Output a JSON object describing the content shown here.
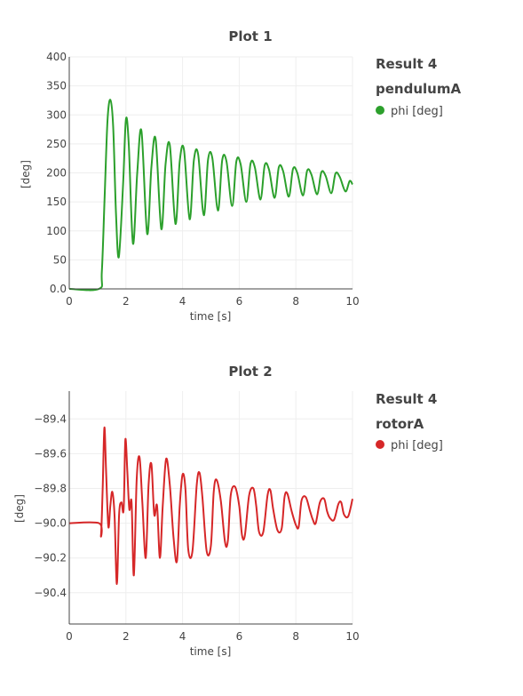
{
  "chart_data": [
    {
      "type": "line",
      "title": "Plot 1",
      "xlabel": "time [s]",
      "ylabel": "[deg]",
      "xlim": [
        0,
        10
      ],
      "ylim": [
        0,
        400
      ],
      "xticks": [
        0,
        2,
        4,
        6,
        8,
        10
      ],
      "xtick_labels": [
        "0",
        "2",
        "4",
        "6",
        "8",
        "10"
      ],
      "yticks": [
        0,
        50,
        100,
        150,
        200,
        250,
        300,
        350,
        400
      ],
      "ytick_labels": [
        "0.0",
        "50",
        "100",
        "150",
        "200",
        "250",
        "300",
        "350",
        "400"
      ],
      "grid": true,
      "legend_position": "right",
      "legend": {
        "group": "Result 4",
        "subgroup": "pendulumA",
        "entry": "phi [deg]"
      },
      "series": [
        {
          "name": "phi [deg]",
          "color": "#2ca02c",
          "x": [
            0,
            1.05,
            1.15,
            1.25,
            1.35,
            1.45,
            1.55,
            1.65,
            1.75,
            1.9,
            2.0,
            2.1,
            2.25,
            2.4,
            2.55,
            2.75,
            2.9,
            3.05,
            3.25,
            3.4,
            3.55,
            3.75,
            3.9,
            4.05,
            4.25,
            4.4,
            4.55,
            4.75,
            4.9,
            5.05,
            5.25,
            5.4,
            5.55,
            5.75,
            5.9,
            6.05,
            6.25,
            6.4,
            6.55,
            6.75,
            6.9,
            7.05,
            7.25,
            7.4,
            7.55,
            7.75,
            7.9,
            8.05,
            8.25,
            8.4,
            8.55,
            8.75,
            8.9,
            9.05,
            9.25,
            9.4,
            9.55,
            9.75,
            9.9,
            10.0
          ],
          "values": [
            0,
            0,
            30,
            160,
            290,
            326,
            280,
            130,
            55,
            180,
            292,
            250,
            78,
            200,
            272,
            95,
            210,
            258,
            103,
            215,
            248,
            112,
            220,
            240,
            120,
            222,
            232,
            127,
            223,
            226,
            135,
            222,
            220,
            143,
            220,
            215,
            150,
            216,
            210,
            154,
            213,
            206,
            157,
            210,
            203,
            159,
            207,
            200,
            161,
            204,
            197,
            163,
            201,
            195,
            165,
            199,
            193,
            168,
            186,
            180
          ]
        }
      ]
    },
    {
      "type": "line",
      "title": "Plot 2",
      "xlabel": "time [s]",
      "ylabel": "[deg]",
      "xlim": [
        0,
        10
      ],
      "ylim": [
        -90.58,
        -89.24
      ],
      "xticks": [
        0,
        2,
        4,
        6,
        8,
        10
      ],
      "xtick_labels": [
        "0",
        "2",
        "4",
        "6",
        "8",
        "10"
      ],
      "yticks": [
        -89.4,
        -89.6,
        -89.8,
        -90.0,
        -90.2,
        -90.4
      ],
      "ytick_labels": [
        "−89.4",
        "−89.6",
        "−89.8",
        "−90.0",
        "−90.2",
        "−90.4"
      ],
      "grid": true,
      "legend_position": "right",
      "legend": {
        "group": "Result 4",
        "subgroup": "rotorA",
        "entry": "phi [deg]"
      },
      "series": [
        {
          "name": "phi [deg]",
          "color": "#d62728",
          "x": [
            0,
            1.05,
            1.12,
            1.18,
            1.24,
            1.3,
            1.38,
            1.45,
            1.52,
            1.6,
            1.68,
            1.76,
            1.84,
            1.92,
            1.98,
            2.05,
            2.12,
            2.2,
            2.28,
            2.38,
            2.48,
            2.58,
            2.7,
            2.8,
            2.9,
            3.0,
            3.1,
            3.2,
            3.3,
            3.42,
            3.55,
            3.68,
            3.8,
            3.9,
            4.0,
            4.1,
            4.2,
            4.35,
            4.5,
            4.6,
            4.7,
            4.85,
            5.0,
            5.1,
            5.2,
            5.35,
            5.5,
            5.6,
            5.7,
            5.85,
            6.0,
            6.1,
            6.2,
            6.35,
            6.5,
            6.6,
            6.7,
            6.85,
            7.0,
            7.1,
            7.2,
            7.35,
            7.5,
            7.6,
            7.7,
            7.85,
            8.0,
            8.1,
            8.2,
            8.35,
            8.5,
            8.6,
            8.7,
            8.85,
            9.0,
            9.1,
            9.2,
            9.35,
            9.5,
            9.6,
            9.7,
            9.85,
            10.0
          ],
          "values": [
            -90.0,
            -90.0,
            -90.07,
            -89.8,
            -89.45,
            -89.7,
            -90.02,
            -89.9,
            -89.82,
            -89.96,
            -90.35,
            -89.95,
            -89.88,
            -89.92,
            -89.52,
            -89.7,
            -89.92,
            -89.88,
            -90.3,
            -89.75,
            -89.62,
            -89.88,
            -90.2,
            -89.78,
            -89.66,
            -89.95,
            -89.9,
            -90.2,
            -89.9,
            -89.63,
            -89.78,
            -90.08,
            -90.22,
            -89.9,
            -89.72,
            -89.8,
            -90.15,
            -90.16,
            -89.78,
            -89.71,
            -89.85,
            -90.16,
            -90.13,
            -89.82,
            -89.75,
            -89.87,
            -90.11,
            -90.1,
            -89.84,
            -89.79,
            -89.9,
            -90.07,
            -90.07,
            -89.84,
            -89.8,
            -89.9,
            -90.05,
            -90.05,
            -89.84,
            -89.81,
            -89.92,
            -90.04,
            -90.03,
            -89.85,
            -89.83,
            -89.93,
            -90.01,
            -90.02,
            -89.87,
            -89.85,
            -89.93,
            -89.98,
            -90.0,
            -89.88,
            -89.86,
            -89.93,
            -89.97,
            -89.98,
            -89.89,
            -89.88,
            -89.95,
            -89.96,
            -89.86
          ]
        }
      ]
    }
  ]
}
